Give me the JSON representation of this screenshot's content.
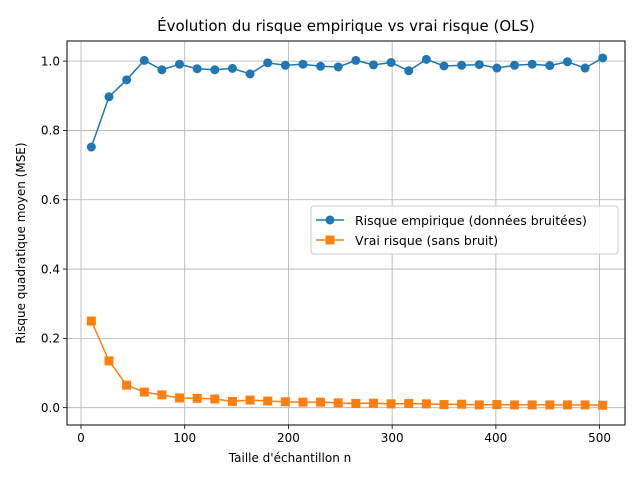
{
  "chart_data": {
    "type": "line",
    "title": "Évolution du risque empirique vs vrai risque (OLS)",
    "xlabel": "Taille d'échantillon n",
    "ylabel": "Risque quadratique moyen (MSE)",
    "xlim": [
      -13.5,
      524.5
    ],
    "ylim": [
      -0.05,
      1.058
    ],
    "xticks": [
      0,
      100,
      200,
      300,
      400,
      500
    ],
    "xtick_labels": [
      "0",
      "100",
      "200",
      "300",
      "400",
      "500"
    ],
    "yticks": [
      0.0,
      0.2,
      0.4,
      0.6,
      0.8,
      1.0
    ],
    "ytick_labels": [
      "0.0",
      "0.2",
      "0.4",
      "0.6",
      "0.8",
      "1.0"
    ],
    "grid": true,
    "legend_position": "center-right",
    "x": [
      10,
      27,
      44,
      61,
      78,
      95,
      112,
      129,
      146,
      163,
      180,
      197,
      214,
      231,
      248,
      265,
      282,
      299,
      316,
      333,
      350,
      367,
      384,
      401,
      418,
      435,
      452,
      469,
      486,
      503
    ],
    "series": [
      {
        "name": "Risque empirique (données bruitées)",
        "color": "#1f77b4",
        "marker": "circle",
        "values": [
          0.752,
          0.897,
          0.946,
          1.002,
          0.975,
          0.991,
          0.978,
          0.975,
          0.979,
          0.963,
          0.995,
          0.988,
          0.991,
          0.985,
          0.983,
          1.002,
          0.989,
          0.996,
          0.972,
          1.005,
          0.986,
          0.988,
          0.99,
          0.98,
          0.988,
          0.991,
          0.987,
          0.998,
          0.98,
          1.009
        ]
      },
      {
        "name": "Vrai risque (sans bruit)",
        "color": "#ff7f0e",
        "marker": "square",
        "values": [
          0.25,
          0.135,
          0.065,
          0.045,
          0.037,
          0.028,
          0.027,
          0.025,
          0.018,
          0.022,
          0.019,
          0.017,
          0.016,
          0.016,
          0.014,
          0.012,
          0.013,
          0.011,
          0.012,
          0.011,
          0.009,
          0.01,
          0.008,
          0.009,
          0.008,
          0.008,
          0.008,
          0.008,
          0.008,
          0.007
        ]
      }
    ]
  }
}
